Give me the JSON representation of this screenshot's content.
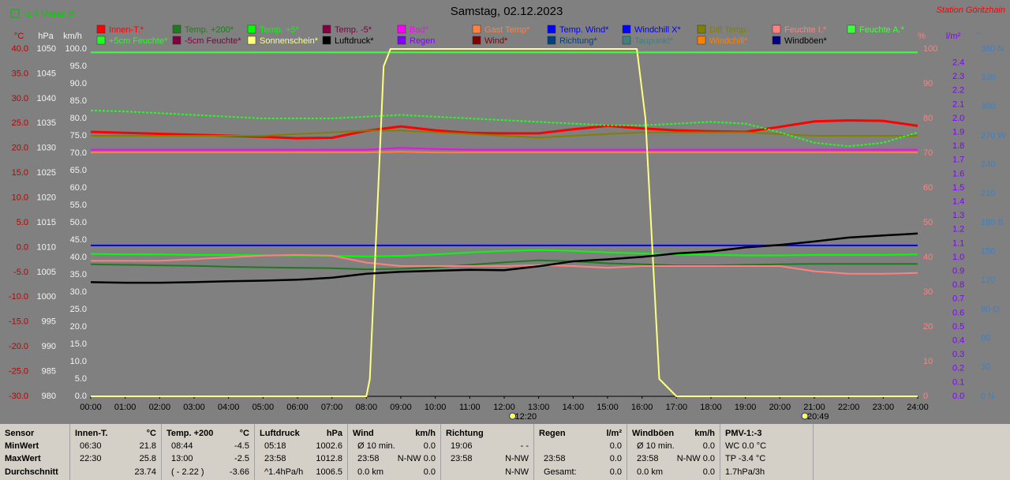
{
  "header": {
    "monthly": "-1.4 Monat-Ø",
    "station": "Station Göritzhain"
  },
  "chart_data": {
    "type": "line",
    "title": "Samstag, 02.12.2023",
    "x": [
      0,
      1,
      2,
      3,
      4,
      5,
      6,
      7,
      8,
      9,
      10,
      11,
      12,
      13,
      14,
      15,
      16,
      17,
      18,
      19,
      20,
      21,
      22,
      23,
      24
    ],
    "xlim": [
      0,
      24
    ],
    "xticks": [
      {
        "value": 0,
        "label": "00:00"
      },
      {
        "value": 1,
        "label": "01:00"
      },
      {
        "value": 2,
        "label": "02:00"
      },
      {
        "value": 3,
        "label": "03:00"
      },
      {
        "value": 4,
        "label": "04:00"
      },
      {
        "value": 5,
        "label": "05:00"
      },
      {
        "value": 6,
        "label": "06:00"
      },
      {
        "value": 7,
        "label": "07:00"
      },
      {
        "value": 8,
        "label": "08:00"
      },
      {
        "value": 9,
        "label": "09:00"
      },
      {
        "value": 10,
        "label": "10:00"
      },
      {
        "value": 11,
        "label": "11:00"
      },
      {
        "value": 12,
        "label": "12:00"
      },
      {
        "value": 13,
        "label": "13:00"
      },
      {
        "value": 14,
        "label": "14:00"
      },
      {
        "value": 15,
        "label": "15:00"
      },
      {
        "value": 16,
        "label": "16:00"
      },
      {
        "value": 17,
        "label": "17:00"
      },
      {
        "value": 18,
        "label": "18:00"
      },
      {
        "value": 19,
        "label": "19:00"
      },
      {
        "value": 20,
        "label": "20:00"
      },
      {
        "value": 21,
        "label": "21:00"
      },
      {
        "value": 22,
        "label": "22:00"
      },
      {
        "value": 23,
        "label": "23:00"
      },
      {
        "value": 24,
        "label": "24:00"
      }
    ],
    "ylabel": "km/h",
    "ycolor": "#f4f4f4",
    "ylim": [
      0,
      100
    ],
    "yticks": [
      {
        "value": 0,
        "label": "0.0"
      },
      {
        "value": 5,
        "label": "5.0"
      },
      {
        "value": 10,
        "label": "10.0"
      },
      {
        "value": 15,
        "label": "15.0"
      },
      {
        "value": 20,
        "label": "20.0"
      },
      {
        "value": 25,
        "label": "25.0"
      },
      {
        "value": 30,
        "label": "30.0"
      },
      {
        "value": 35,
        "label": "35.0"
      },
      {
        "value": 40,
        "label": "40.0"
      },
      {
        "value": 45,
        "label": "45.0"
      },
      {
        "value": 50,
        "label": "50.0"
      },
      {
        "value": 55,
        "label": "55.0"
      },
      {
        "value": 60,
        "label": "60.0"
      },
      {
        "value": 65,
        "label": "65.0"
      },
      {
        "value": 70,
        "label": "70.0"
      },
      {
        "value": 75,
        "label": "75.0"
      },
      {
        "value": 80,
        "label": "80.0"
      },
      {
        "value": 85,
        "label": "85.0"
      },
      {
        "value": 90,
        "label": "90.0"
      },
      {
        "value": 95,
        "label": "95.0"
      },
      {
        "value": 100,
        "label": "100.0"
      }
    ],
    "y2label": "°C",
    "y2color": "#c00000",
    "y2lim": [
      -30,
      40
    ],
    "y2ticks": [
      {
        "value": -30,
        "label": "-30.0"
      },
      {
        "value": -25,
        "label": "-25.0"
      },
      {
        "value": -20,
        "label": "-20.0"
      },
      {
        "value": -15,
        "label": "-15.0"
      },
      {
        "value": -10,
        "label": "-10.0"
      },
      {
        "value": -5,
        "label": "-5.0"
      },
      {
        "value": 0,
        "label": "0.0"
      },
      {
        "value": 5,
        "label": "5.0"
      },
      {
        "value": 10,
        "label": "10.0"
      },
      {
        "value": 15,
        "label": "15.0"
      },
      {
        "value": 20,
        "label": "20.0"
      },
      {
        "value": 25,
        "label": "25.0"
      },
      {
        "value": 30,
        "label": "30.0"
      },
      {
        "value": 35,
        "label": "35.0"
      },
      {
        "value": 40,
        "label": "40.0"
      }
    ],
    "y3label": "hPa",
    "y3color": "#f4f4f4",
    "y3lim": [
      980,
      1050
    ],
    "y3ticks": [
      980,
      985,
      990,
      995,
      1000,
      1005,
      1010,
      1015,
      1020,
      1025,
      1030,
      1035,
      1040,
      1045,
      1050
    ],
    "y4label": "%",
    "y4color": "#ff8080",
    "y4lim": [
      0,
      100
    ],
    "y4ticks": [
      0,
      10,
      20,
      30,
      40,
      50,
      60,
      70,
      80,
      90,
      100
    ],
    "y5label": "l/m²",
    "y5color": "#8000ff",
    "y5lim": [
      0,
      2.5
    ],
    "y5ticks": [
      {
        "value": 0,
        "label": "0.0"
      },
      0.1,
      0.2,
      0.3,
      0.4,
      0.5,
      0.6,
      0.7,
      0.8,
      0.9,
      {
        "value": 1,
        "label": "1.0"
      },
      1.1,
      1.2,
      1.3,
      1.4,
      1.5,
      1.6,
      1.7,
      1.8,
      1.9,
      {
        "value": 2,
        "label": "2.0"
      },
      2.1,
      2.2,
      2.3,
      2.4
    ],
    "y6label": "°",
    "y6color": "#3f7fc0",
    "y6lim": [
      0,
      360
    ],
    "y6ticks": [
      {
        "value": 0,
        "label": "0 N"
      },
      30,
      60,
      {
        "value": 90,
        "label": "90 O"
      },
      120,
      150,
      {
        "value": 180,
        "label": "180 S"
      },
      210,
      240,
      {
        "value": 270,
        "label": "270 W"
      },
      300,
      330,
      {
        "value": 360,
        "label": "360 N"
      }
    ],
    "annotations": [
      {
        "value": 12.333,
        "label": "12:20"
      },
      {
        "value": 20.817,
        "label": "20:49"
      }
    ],
    "series": [
      {
        "name": "Innen-T.*",
        "color": "#ff0000",
        "axis": "y2",
        "values": [
          23.3,
          23.1,
          22.9,
          22.7,
          22.5,
          22.3,
          22.0,
          22.1,
          23.5,
          24.4,
          23.6,
          23.1,
          23.0,
          23.0,
          23.8,
          24.5,
          24.0,
          23.6,
          23.4,
          23.3,
          24.3,
          25.4,
          25.6,
          25.5,
          24.5
        ]
      },
      {
        "name": "Temp. +200*",
        "color": "#1f7a1f",
        "axis": "y2",
        "values": [
          -3.4,
          -3.5,
          -3.6,
          -3.7,
          -3.9,
          -4.0,
          -4.1,
          -4.2,
          -4.4,
          -4.3,
          -4.0,
          -3.5,
          -3.0,
          -2.6,
          -2.8,
          -3.2,
          -3.4,
          -3.6,
          -3.6,
          -3.5,
          -3.4,
          -3.3,
          -3.3,
          -3.3,
          -3.3
        ]
      },
      {
        "name": "Temp. +5*",
        "color": "#00ff00",
        "axis": "y2",
        "values": [
          -1.3,
          -1.4,
          -1.4,
          -1.5,
          -1.5,
          -1.6,
          -1.6,
          -1.7,
          -1.8,
          -1.7,
          -1.4,
          -1.0,
          -0.7,
          -0.5,
          -0.7,
          -1.0,
          -1.2,
          -1.4,
          -1.5,
          -1.6,
          -1.6,
          -1.5,
          -1.5,
          -1.5,
          -1.4
        ]
      },
      {
        "name": "Temp. -5*",
        "color": "#800040"
      },
      {
        "name": "Bad*",
        "color": "#ff00ff",
        "axis": "y4",
        "values": [
          71.0,
          71.0,
          71.0,
          71.0,
          71.0,
          71.0,
          71.0,
          71.0,
          71.0,
          71.5,
          71.2,
          71.0,
          71.0,
          71.0,
          71.0,
          71.0,
          71.0,
          71.0,
          71.0,
          71.0,
          71.0,
          71.0,
          71.0,
          71.0,
          71.0
        ]
      },
      {
        "name": "Gast Temp*",
        "color": "#ff8040",
        "axis": "y4",
        "values": [
          70.2,
          70.2,
          70.2,
          70.2,
          70.2,
          70.2,
          70.2,
          70.2,
          70.2,
          70.4,
          70.2,
          70.2,
          70.2,
          70.2,
          70.2,
          70.2,
          70.2,
          70.2,
          70.2,
          70.2,
          70.2,
          70.2,
          70.2,
          70.2,
          70.2
        ]
      },
      {
        "name": "Temp. Wind*",
        "color": "#0000ff",
        "axis": "y2",
        "values": [
          0.4,
          0.4,
          0.4,
          0.4,
          0.4,
          0.4,
          0.4,
          0.4,
          0.4,
          0.4,
          0.4,
          0.4,
          0.4,
          0.4,
          0.4,
          0.4,
          0.4,
          0.4,
          0.4,
          0.4,
          0.4,
          0.4,
          0.4,
          0.4,
          0.4
        ]
      },
      {
        "name": "Windchill X*",
        "color": "#0000ff"
      },
      {
        "name": "Diff Temp.",
        "color": "#808000",
        "axis": "y4",
        "values": [
          75,
          75,
          75,
          75,
          75,
          75,
          75.5,
          76,
          76.5,
          76.5,
          76,
          75.5,
          75,
          74.5,
          75,
          75.5,
          76,
          76,
          76,
          76,
          75.5,
          75,
          75,
          75,
          75
        ]
      },
      {
        "name": "Feuchte I.*",
        "color": "#ff8080",
        "axis": "y4",
        "values": [
          39,
          39,
          39,
          39.5,
          40,
          40.5,
          40.7,
          40.5,
          38.5,
          37.5,
          37.5,
          37.5,
          37.5,
          37.8,
          37.5,
          37,
          37.5,
          37.5,
          37.5,
          37.5,
          37.5,
          36,
          35.3,
          35.3,
          35.5
        ]
      },
      {
        "name": "Feuchte A.*",
        "color": "#40ff40",
        "axis": "y4",
        "values": [
          99,
          99,
          99,
          99,
          99,
          99,
          99,
          99,
          99,
          99,
          99,
          99,
          99,
          99,
          99,
          99,
          99,
          99,
          99,
          99,
          99,
          99,
          99,
          99,
          99
        ]
      },
      {
        "name": "+5cm Feuchte*",
        "color": "#20ff20",
        "axis": "y4",
        "dash": true,
        "values": [
          82.3,
          82,
          81.5,
          81,
          80.5,
          80,
          80,
          80,
          80.5,
          81,
          80.5,
          80,
          79.5,
          79,
          78.5,
          78,
          78,
          78.5,
          79,
          78.5,
          76,
          73,
          72,
          73,
          76
        ]
      },
      {
        "name": "-5cm Feuchte*",
        "color": "#800040"
      },
      {
        "name": "Sonnenschein*",
        "color": "#ffff80",
        "axis": "y4",
        "x": [
          0,
          8,
          8.1,
          8.5,
          8.7,
          15.85,
          16.1,
          16.5,
          17,
          24
        ],
        "values": [
          0,
          0,
          5,
          95,
          100,
          100,
          80,
          5,
          0,
          0
        ]
      },
      {
        "name": "Luftdruck*",
        "color": "#000000",
        "axis": "y3",
        "values": [
          1003.0,
          1002.9,
          1002.9,
          1003.0,
          1003.2,
          1003.3,
          1003.5,
          1003.9,
          1004.7,
          1005.1,
          1005.3,
          1005.5,
          1005.4,
          1006.2,
          1007.2,
          1007.6,
          1008.1,
          1008.8,
          1009.2,
          1010.0,
          1010.5,
          1011.2,
          1012.0,
          1012.4,
          1012.8
        ]
      },
      {
        "name": "Regen",
        "color": "#8000ff"
      },
      {
        "name": "Wind*",
        "color": "#800000"
      },
      {
        "name": "Richtung*",
        "color": "#004080"
      },
      {
        "name": "Taupunkt*",
        "color": "#408080"
      },
      {
        "name": "Windchill*",
        "color": "#ff8000"
      },
      {
        "name": "Windböen*",
        "color": "#000080"
      }
    ]
  },
  "stats": {
    "row_labels": [
      "Sensor",
      "MinWert",
      "MaxWert",
      "Durchschnitt"
    ],
    "groups": [
      {
        "name": "Innen-T.",
        "unit": "°C",
        "rows": [
          [
            "06:30",
            "21.8"
          ],
          [
            "22:30",
            "25.8"
          ],
          [
            "23.74"
          ]
        ]
      },
      {
        "name": "Temp. +200",
        "unit": "°C",
        "rows": [
          [
            "08:44",
            "-4.5"
          ],
          [
            "13:00",
            "-2.5"
          ],
          [
            "( - 2.22 )",
            "-3.66"
          ]
        ]
      },
      {
        "name": "Luftdruck",
        "unit": "hPa",
        "rows": [
          [
            "05:18",
            "1002.6"
          ],
          [
            "23:58",
            "1012.8"
          ],
          [
            "^1.4hPa/h",
            "1006.5"
          ]
        ]
      },
      {
        "name": "Wind",
        "unit": "km/h",
        "rows": [
          [
            "Ø 10 min.",
            "0.0"
          ],
          [
            "23:58",
            "N-NW 0.0"
          ],
          [
            "0.0 km",
            "0.0"
          ]
        ]
      },
      {
        "name": "Richtung",
        "rows": [
          [
            "19:06",
            "- -"
          ],
          [
            "23:58",
            "N-NW"
          ],
          [
            "N-NW"
          ]
        ]
      },
      {
        "name": "Regen",
        "unit": "l/m²",
        "rows": [
          [
            "0.0"
          ],
          [
            "23:58",
            "0.0"
          ],
          [
            "Gesamt:",
            "0.0"
          ]
        ]
      },
      {
        "name": "Windböen",
        "unit": "km/h",
        "rows": [
          [
            "Ø 10 min.",
            "0.0"
          ],
          [
            "23:58",
            "N-NW 0.0"
          ],
          [
            "0.0 km",
            "0.0"
          ]
        ]
      },
      {
        "name": "PMV-1:-3",
        "rows": [
          [
            "WC 0.0 °C"
          ],
          [
            "TP -3.4 °C"
          ],
          [
            "1.7hPa/3h"
          ]
        ]
      }
    ]
  }
}
